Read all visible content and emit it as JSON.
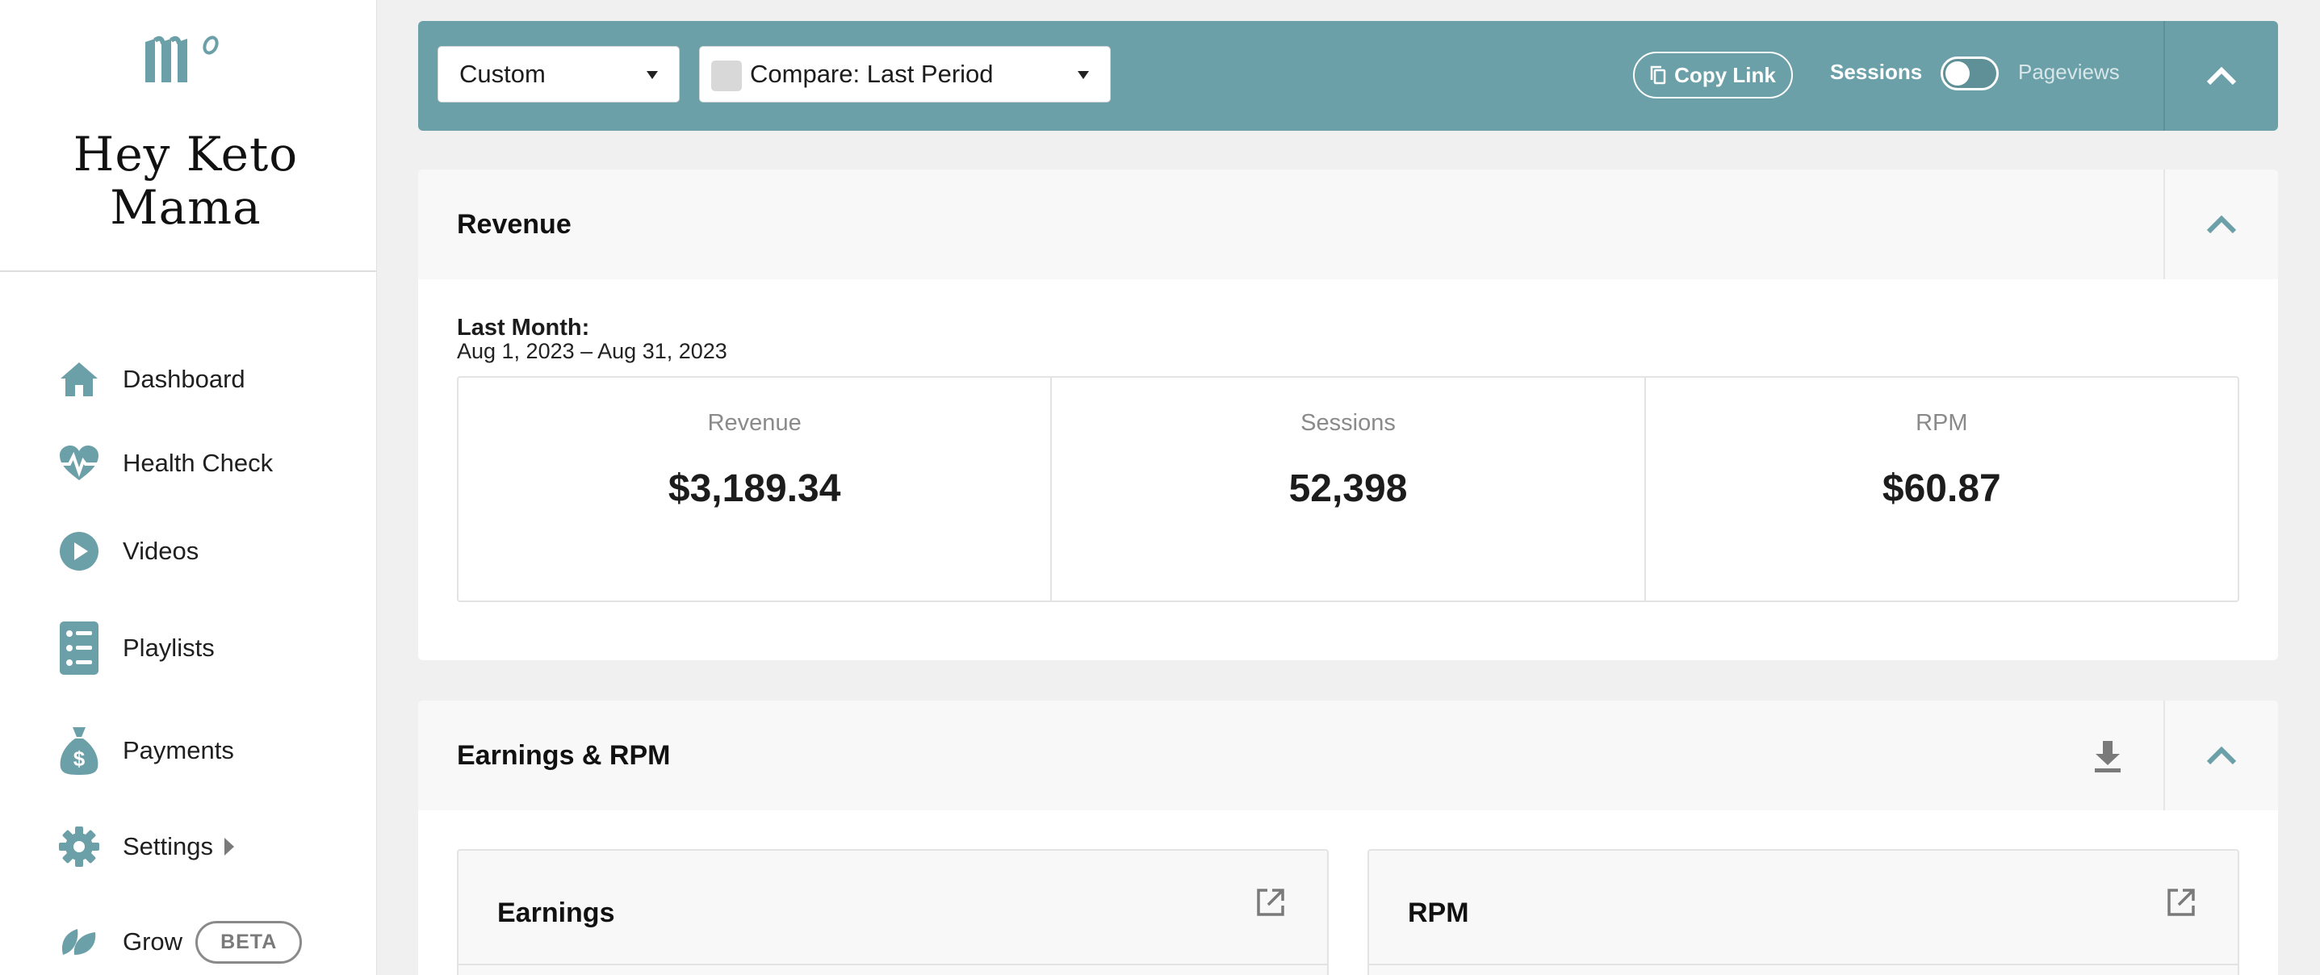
{
  "brand": {
    "name": "Hey Keto Mama",
    "accent": "#6ba0a8"
  },
  "sidebar": {
    "items": [
      {
        "label": "Dashboard",
        "icon": "home-icon"
      },
      {
        "label": "Health Check",
        "icon": "heartbeat-icon"
      },
      {
        "label": "Videos",
        "icon": "play-circle-icon"
      },
      {
        "label": "Playlists",
        "icon": "list-icon"
      },
      {
        "label": "Payments",
        "icon": "money-bag-icon"
      },
      {
        "label": "Settings",
        "icon": "gear-icon"
      },
      {
        "label": "Grow",
        "icon": "leaf-icon",
        "badge": "BETA"
      }
    ]
  },
  "toolbar": {
    "range_select": "Custom",
    "compare_select": "Compare: Last Period",
    "copy_link": "Copy Link",
    "toggle_left": "Sessions",
    "toggle_right": "Pageviews",
    "toggle_state": "Sessions"
  },
  "revenue_card": {
    "title": "Revenue",
    "period_label": "Last Month:",
    "period_dates": "Aug 1, 2023 – Aug 31, 2023",
    "stats": [
      {
        "label": "Revenue",
        "value": "$3,189.34"
      },
      {
        "label": "Sessions",
        "value": "52,398"
      },
      {
        "label": "RPM",
        "value": "$60.87"
      }
    ]
  },
  "earnings_card": {
    "title": "Earnings & RPM",
    "panels": [
      {
        "title": "Earnings"
      },
      {
        "title": "RPM"
      }
    ]
  }
}
